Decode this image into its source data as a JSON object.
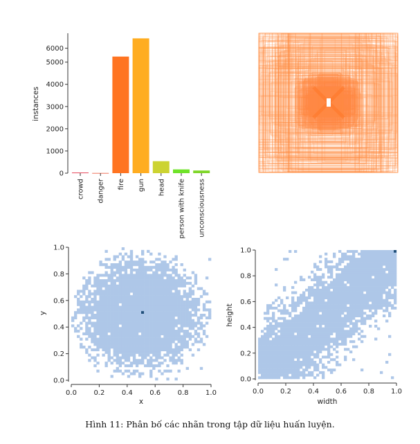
{
  "caption": "Hình 11: Phân bố các nhãn trong tập dữ liệu huấn luyện.",
  "chart_data": [
    {
      "type": "bar",
      "ylabel": "instances",
      "ylim": [
        0,
        6300
      ],
      "yticks": [
        0,
        1000,
        2000,
        3000,
        4000,
        5000,
        6000
      ],
      "ytick_labels": [
        "0",
        "1000",
        "2000",
        "3000",
        "4000",
        "5000",
        "6000"
      ],
      "categories": [
        "crowd",
        "danger",
        "fire",
        "gun",
        "head",
        "person with knife",
        "unconsciousness"
      ],
      "values": [
        30,
        10,
        5250,
        6070,
        540,
        170,
        120
      ],
      "colors": [
        "#e8475b",
        "#f2735c",
        "#ff7421",
        "#ffad21",
        "#ccd331",
        "#6fe329",
        "#7fd629"
      ]
    },
    {
      "type": "boxes-overlay",
      "description_free": true,
      "color": "#ff8c42"
    },
    {
      "type": "heatmap",
      "xlabel": "x",
      "ylabel": "y",
      "xlim": [
        0,
        1
      ],
      "ylim": [
        0,
        1
      ],
      "xticks": [
        "0.0",
        "0.2",
        "0.4",
        "0.6",
        "0.8",
        "1.0"
      ],
      "yticks": [
        "0.0",
        "0.2",
        "0.4",
        "0.6",
        "0.8",
        "1.0"
      ],
      "cell_color": "#aec7e8",
      "peak": [
        0.5,
        0.5
      ]
    },
    {
      "type": "heatmap",
      "xlabel": "width",
      "ylabel": "height",
      "xlim": [
        0,
        1
      ],
      "ylim": [
        0,
        1
      ],
      "xticks": [
        "0.0",
        "0.2",
        "0.4",
        "0.6",
        "0.8",
        "1.0"
      ],
      "yticks": [
        "0.0",
        "0.2",
        "0.4",
        "0.6",
        "0.8",
        "1.0"
      ],
      "cell_color": "#aec7e8",
      "peak": [
        1.0,
        1.0
      ]
    }
  ]
}
